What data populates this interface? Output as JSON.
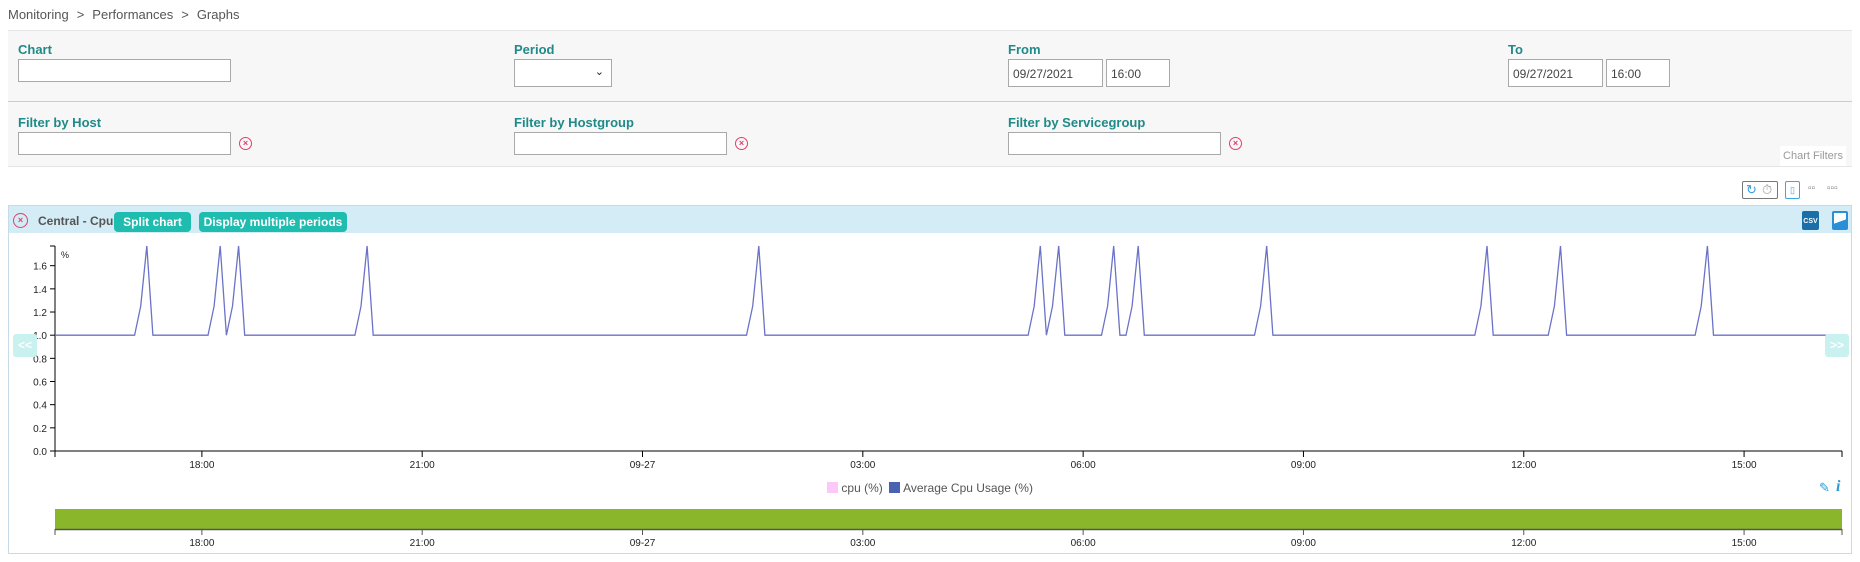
{
  "breadcrumb": [
    "Monitoring",
    "Performances",
    "Graphs"
  ],
  "filters": {
    "chart": {
      "label": "Chart",
      "value": ""
    },
    "period": {
      "label": "Period",
      "value": ""
    },
    "from": {
      "label": "From",
      "date": "09/27/2021",
      "time": "16:00"
    },
    "to": {
      "label": "To",
      "date": "09/27/2021",
      "time": "16:00"
    },
    "host": {
      "label": "Filter by Host",
      "value": ""
    },
    "hostgroup": {
      "label": "Filter by Hostgroup",
      "value": ""
    },
    "servicegroup": {
      "label": "Filter by Servicegroup",
      "value": ""
    },
    "chart_filters_tab": "Chart Filters"
  },
  "toolbar": {
    "icons": [
      "refresh-icon",
      "timer-icon",
      "layout-1-column-icon",
      "layout-2-columns-icon",
      "layout-3-columns-icon"
    ],
    "layout2": "▫▫",
    "layout3": "▫▫▫"
  },
  "chart_panel": {
    "title": "Central - Cpu",
    "split_button": "Split chart",
    "multi_period_button": "Display multiple periods",
    "prev_button": "<<",
    "next_button": ">>",
    "export_icons": [
      "csv-export-icon",
      "image-export-icon"
    ],
    "legend_icons": [
      "pencil-icon",
      "info-icon"
    ],
    "header_color": "#d3ecf5",
    "button_color": "#1fbcb0",
    "navigator_color": "#8ab62b"
  },
  "chart_data": {
    "type": "line",
    "unit_label": "%",
    "x_range": [
      "2021-09-26 16:00",
      "2021-09-27 16:20"
    ],
    "ylim": [
      0,
      1.77
    ],
    "yticks": [
      "0.0",
      "0.2",
      "0.4",
      "0.6",
      "0.8",
      "1.0",
      "1.2",
      "1.4",
      "1.6"
    ],
    "xticks": [
      {
        "t": "2021-09-26 18:00",
        "label": "18:00"
      },
      {
        "t": "2021-09-26 21:00",
        "label": "21:00"
      },
      {
        "t": "2021-09-27 00:00",
        "label": "09-27"
      },
      {
        "t": "2021-09-27 03:00",
        "label": "03:00"
      },
      {
        "t": "2021-09-27 06:00",
        "label": "06:00"
      },
      {
        "t": "2021-09-27 09:00",
        "label": "09:00"
      },
      {
        "t": "2021-09-27 12:00",
        "label": "12:00"
      },
      {
        "t": "2021-09-27 15:00",
        "label": "15:00"
      }
    ],
    "legend": [
      {
        "name": "cpu (%)",
        "color": "#fcc8f8"
      },
      {
        "name": "Average Cpu Usage (%)",
        "color": "#4b62b0"
      }
    ],
    "series": [
      {
        "name": "cpu (%)",
        "color": "#fcc8f8",
        "points": []
      },
      {
        "name": "Average Cpu Usage (%)",
        "color": "#6b72c8",
        "points": [
          [
            "2021-09-26 16:00",
            1.0
          ],
          [
            "2021-09-26 17:05",
            1.0
          ],
          [
            "2021-09-26 17:10",
            1.25
          ],
          [
            "2021-09-26 17:15",
            1.77
          ],
          [
            "2021-09-26 17:20",
            1.0
          ],
          [
            "2021-09-26 18:05",
            1.0
          ],
          [
            "2021-09-26 18:10",
            1.25
          ],
          [
            "2021-09-26 18:15",
            1.77
          ],
          [
            "2021-09-26 18:20",
            1.0
          ],
          [
            "2021-09-26 18:25",
            1.25
          ],
          [
            "2021-09-26 18:30",
            1.77
          ],
          [
            "2021-09-26 18:35",
            1.0
          ],
          [
            "2021-09-26 20:05",
            1.0
          ],
          [
            "2021-09-26 20:10",
            1.25
          ],
          [
            "2021-09-26 20:15",
            1.77
          ],
          [
            "2021-09-26 20:20",
            1.0
          ],
          [
            "2021-09-27 01:25",
            1.0
          ],
          [
            "2021-09-27 01:30",
            1.25
          ],
          [
            "2021-09-27 01:35",
            1.77
          ],
          [
            "2021-09-27 01:40",
            1.0
          ],
          [
            "2021-09-27 05:15",
            1.0
          ],
          [
            "2021-09-27 05:20",
            1.25
          ],
          [
            "2021-09-27 05:25",
            1.77
          ],
          [
            "2021-09-27 05:30",
            1.0
          ],
          [
            "2021-09-27 05:35",
            1.25
          ],
          [
            "2021-09-27 05:40",
            1.77
          ],
          [
            "2021-09-27 05:45",
            1.0
          ],
          [
            "2021-09-27 06:15",
            1.0
          ],
          [
            "2021-09-27 06:20",
            1.25
          ],
          [
            "2021-09-27 06:25",
            1.77
          ],
          [
            "2021-09-27 06:30",
            1.0
          ],
          [
            "2021-09-27 06:35",
            1.0
          ],
          [
            "2021-09-27 06:40",
            1.25
          ],
          [
            "2021-09-27 06:45",
            1.77
          ],
          [
            "2021-09-27 06:50",
            1.0
          ],
          [
            "2021-09-27 08:20",
            1.0
          ],
          [
            "2021-09-27 08:25",
            1.25
          ],
          [
            "2021-09-27 08:30",
            1.77
          ],
          [
            "2021-09-27 08:35",
            1.0
          ],
          [
            "2021-09-27 11:20",
            1.0
          ],
          [
            "2021-09-27 11:25",
            1.25
          ],
          [
            "2021-09-27 11:30",
            1.77
          ],
          [
            "2021-09-27 11:35",
            1.0
          ],
          [
            "2021-09-27 12:20",
            1.0
          ],
          [
            "2021-09-27 12:25",
            1.25
          ],
          [
            "2021-09-27 12:30",
            1.77
          ],
          [
            "2021-09-27 12:35",
            1.0
          ],
          [
            "2021-09-27 14:20",
            1.0
          ],
          [
            "2021-09-27 14:25",
            1.25
          ],
          [
            "2021-09-27 14:30",
            1.77
          ],
          [
            "2021-09-27 14:35",
            1.0
          ],
          [
            "2021-09-27 16:20",
            1.0
          ]
        ]
      }
    ]
  }
}
